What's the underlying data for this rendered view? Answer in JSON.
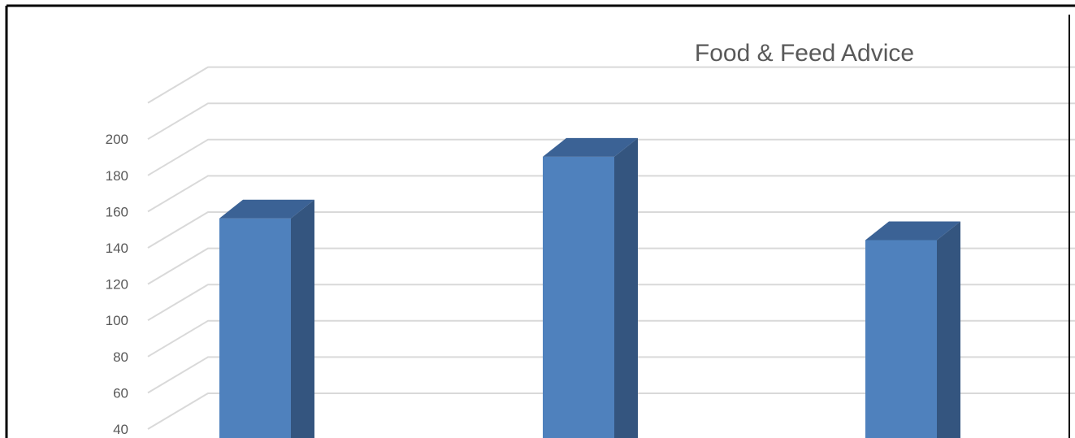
{
  "chart_data": {
    "type": "bar",
    "title": "Food & Feed Advice",
    "subtitle": "",
    "xlabel": "",
    "ylabel": "",
    "categories": [
      "",
      "",
      ""
    ],
    "values": [
      150,
      184,
      138
    ],
    "y_ticks": [
      "40",
      "60",
      "80",
      "100",
      "120",
      "140",
      "160",
      "180",
      "200"
    ],
    "ylim": [
      40,
      220
    ],
    "grid": true,
    "legend": "none",
    "bar_style": "3d-column",
    "colors": {
      "bar_front": "#4f81bd",
      "bar_side": "#34557f",
      "bar_top": "#3b6295",
      "grid": "#d9d9d9",
      "text": "#595959",
      "frame": "#000000"
    }
  }
}
